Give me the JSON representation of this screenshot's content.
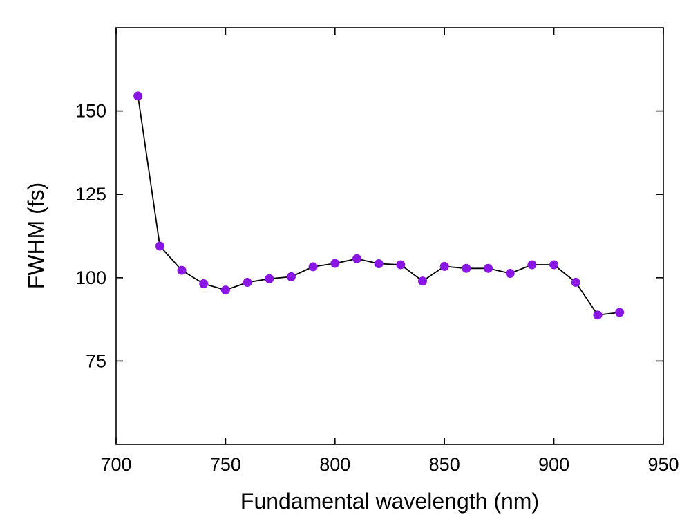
{
  "chart_data": {
    "type": "line",
    "title": "",
    "xlabel": "Fundamental wavelength (nm)",
    "ylabel": "FWHM (fs)",
    "xlim": [
      700,
      950
    ],
    "ylim": [
      50,
      175
    ],
    "xticks": [
      700,
      750,
      800,
      850,
      900,
      950
    ],
    "yticks": [
      75,
      100,
      125,
      150
    ],
    "grid": false,
    "colors": {
      "marker": "#8a16e6",
      "line": "#000000",
      "axis": "#000000"
    },
    "series": [
      {
        "name": "FWHM",
        "x": [
          710,
          720,
          730,
          740,
          750,
          760,
          770,
          780,
          790,
          800,
          810,
          820,
          830,
          840,
          850,
          860,
          870,
          880,
          890,
          900,
          910,
          920,
          930
        ],
        "y": [
          154.5,
          109.5,
          102.2,
          98.2,
          96.3,
          98.6,
          99.7,
          100.3,
          103.3,
          104.3,
          105.7,
          104.2,
          103.9,
          99.0,
          103.4,
          102.8,
          102.8,
          101.3,
          103.9,
          103.9,
          98.6,
          88.8,
          89.6
        ]
      }
    ]
  }
}
